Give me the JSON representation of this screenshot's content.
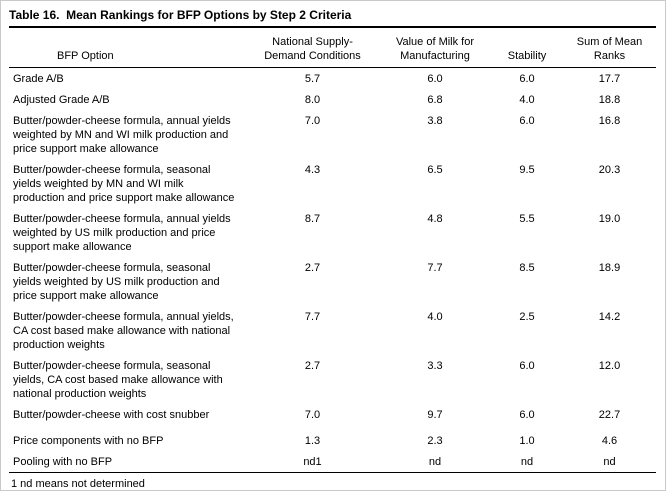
{
  "table": {
    "title": "Table 16.  Mean Rankings for BFP Options by Step 2 Criteria",
    "columns": [
      "BFP Option",
      "National Supply-\nDemand Conditions",
      "Value of Milk for\nManufacturing",
      "Stability",
      "Sum of Mean\nRanks"
    ],
    "rows": [
      {
        "option": "Grade A/B",
        "values": [
          "5.7",
          "6.0",
          "6.0",
          "17.7"
        ]
      },
      {
        "option": "Adjusted Grade A/B",
        "values": [
          "8.0",
          "6.8",
          "4.0",
          "18.8"
        ]
      },
      {
        "option": "Butter/powder-cheese formula, annual yields weighted by MN and WI milk production and price support make allowance",
        "values": [
          "7.0",
          "3.8",
          "6.0",
          "16.8"
        ]
      },
      {
        "option": "Butter/powder-cheese formula, seasonal yields weighted by MN and WI milk production and price support make allowance",
        "values": [
          "4.3",
          "6.5",
          "9.5",
          "20.3"
        ]
      },
      {
        "option": "Butter/powder-cheese formula, annual yields weighted by US milk production and price support make allowance",
        "values": [
          "8.7",
          "4.8",
          "5.5",
          "19.0"
        ]
      },
      {
        "option": "Butter/powder-cheese formula, seasonal yields weighted by US milk production and price support make allowance",
        "values": [
          "2.7",
          "7.7",
          "8.5",
          "18.9"
        ]
      },
      {
        "option": "Butter/powder-cheese formula, annual yields, CA cost based make allowance with national production weights",
        "values": [
          "7.7",
          "4.0",
          "2.5",
          "14.2"
        ]
      },
      {
        "option": "Butter/powder-cheese formula, seasonal yields, CA cost based make allowance with national production weights",
        "values": [
          "2.7",
          "3.3",
          "6.0",
          "12.0"
        ]
      },
      {
        "option": "Butter/powder-cheese with cost snubber",
        "values": [
          "7.0",
          "9.7",
          "6.0",
          "22.7"
        ]
      },
      {
        "option": "Price components with no BFP",
        "values": [
          "1.3",
          "2.3",
          "1.0",
          "4.6"
        ]
      },
      {
        "option": "Pooling with no BFP",
        "values": [
          "nd1",
          "nd",
          "nd",
          "nd"
        ]
      }
    ],
    "footnote": "1 nd means not determined"
  }
}
